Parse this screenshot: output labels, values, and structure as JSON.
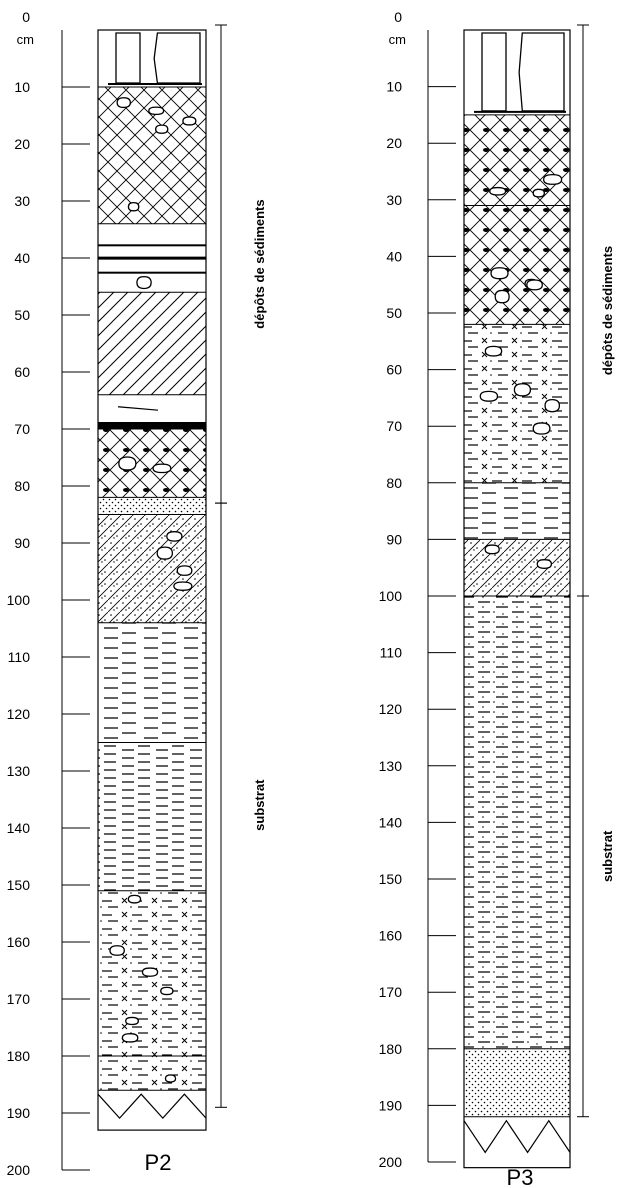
{
  "scale": {
    "unit": "cm",
    "ticks": [
      0,
      10,
      20,
      30,
      40,
      50,
      60,
      70,
      80,
      90,
      100,
      110,
      120,
      130,
      140,
      150,
      160,
      170,
      180,
      190,
      200
    ]
  },
  "profiles": [
    {
      "id": "p2",
      "name": "P2",
      "sections": [
        {
          "label": "dépôts de sédiments",
          "from": 0,
          "to": 83
        },
        {
          "label": "substrat",
          "from": 83,
          "to": 189
        }
      ],
      "layers": [
        {
          "from": 0,
          "to": 10,
          "pattern": "bricks"
        },
        {
          "from": 10,
          "to": 34,
          "pattern": "cross-gravel"
        },
        {
          "from": 34,
          "to": 46,
          "pattern": "thin-bands"
        },
        {
          "from": 46,
          "to": 64,
          "pattern": "diagonal"
        },
        {
          "from": 64,
          "to": 70,
          "pattern": "dark-band"
        },
        {
          "from": 70,
          "to": 82,
          "pattern": "cross-dark-gravel"
        },
        {
          "from": 82,
          "to": 85,
          "pattern": "dots"
        },
        {
          "from": 85,
          "to": 104,
          "pattern": "dotted-hatch-gravel"
        },
        {
          "from": 104,
          "to": 125,
          "pattern": "dashes"
        },
        {
          "from": 125,
          "to": 151,
          "pattern": "dashes-dense"
        },
        {
          "from": 151,
          "to": 180,
          "pattern": "x-dash-gravel"
        },
        {
          "from": 180,
          "to": 186,
          "pattern": "x-dash-gravel"
        },
        {
          "from": 186,
          "to": 193,
          "pattern": "zigzag"
        }
      ]
    },
    {
      "id": "p3",
      "name": "P3",
      "sections": [
        {
          "label": "dépôts de sédiments",
          "from": 0,
          "to": 100
        },
        {
          "label": "substrat",
          "from": 100,
          "to": 192
        }
      ],
      "layers": [
        {
          "from": 0,
          "to": 15,
          "pattern": "bricks"
        },
        {
          "from": 15,
          "to": 31,
          "pattern": "cross-dark-gravel"
        },
        {
          "from": 31,
          "to": 52,
          "pattern": "cross-dark-gravel"
        },
        {
          "from": 52,
          "to": 80,
          "pattern": "x-dash-gravel"
        },
        {
          "from": 80,
          "to": 90,
          "pattern": "dashes"
        },
        {
          "from": 90,
          "to": 100,
          "pattern": "dotted-hatch-gravel"
        },
        {
          "from": 100,
          "to": 180,
          "pattern": "dashes-dotted"
        },
        {
          "from": 180,
          "to": 192,
          "pattern": "dots"
        },
        {
          "from": 192,
          "to": 201,
          "pattern": "zigzag"
        }
      ]
    }
  ]
}
